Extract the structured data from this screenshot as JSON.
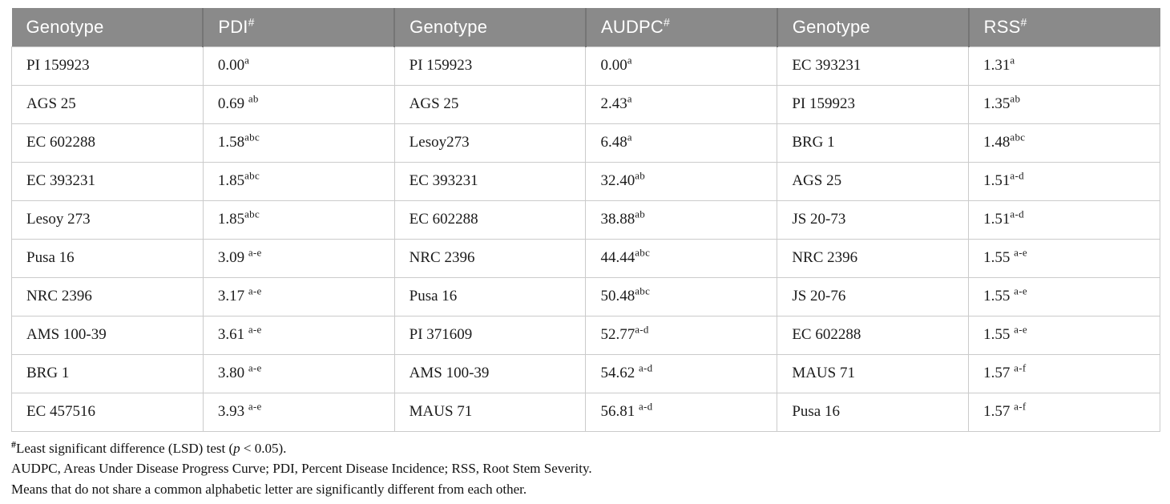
{
  "colors": {
    "header_bg": "#8a8a8a",
    "header_divider": "#757575",
    "header_text": "#ffffff",
    "body_border": "#cbcbcb",
    "body_text": "#1b1b1b",
    "page_bg": "#ffffff"
  },
  "table": {
    "columns": [
      {
        "label": "Genotype",
        "sup": ""
      },
      {
        "label": "PDI",
        "sup": "#"
      },
      {
        "label": "Genotype",
        "sup": ""
      },
      {
        "label": "AUDPC",
        "sup": "#"
      },
      {
        "label": "Genotype",
        "sup": ""
      },
      {
        "label": "RSS",
        "sup": "#"
      }
    ],
    "rows": [
      [
        {
          "t": "PI 159923"
        },
        {
          "t": "0.00",
          "s": "a"
        },
        {
          "t": "PI 159923"
        },
        {
          "t": "0.00",
          "s": "a"
        },
        {
          "t": "EC 393231"
        },
        {
          "t": "1.31",
          "s": "a"
        }
      ],
      [
        {
          "t": "AGS 25"
        },
        {
          "t": "0.69",
          "s": "ab",
          "sp": true
        },
        {
          "t": "AGS 25"
        },
        {
          "t": "2.43",
          "s": "a"
        },
        {
          "t": "PI 159923"
        },
        {
          "t": "1.35",
          "s": "ab"
        }
      ],
      [
        {
          "t": "EC 602288"
        },
        {
          "t": "1.58",
          "s": "abc"
        },
        {
          "t": "Lesoy273"
        },
        {
          "t": "6.48",
          "s": "a"
        },
        {
          "t": "BRG 1"
        },
        {
          "t": "1.48",
          "s": "abc"
        }
      ],
      [
        {
          "t": "EC 393231"
        },
        {
          "t": "1.85",
          "s": "abc"
        },
        {
          "t": "EC 393231"
        },
        {
          "t": "32.40",
          "s": "ab"
        },
        {
          "t": "AGS 25"
        },
        {
          "t": "1.51",
          "s": "a-d"
        }
      ],
      [
        {
          "t": "Lesoy 273"
        },
        {
          "t": "1.85",
          "s": "abc"
        },
        {
          "t": "EC 602288"
        },
        {
          "t": "38.88",
          "s": "ab"
        },
        {
          "t": "JS 20-73"
        },
        {
          "t": "1.51",
          "s": "a-d"
        }
      ],
      [
        {
          "t": "Pusa 16"
        },
        {
          "t": "3.09",
          "s": "a-e",
          "sp": true
        },
        {
          "t": "NRC 2396"
        },
        {
          "t": "44.44",
          "s": "abc"
        },
        {
          "t": "NRC 2396"
        },
        {
          "t": "1.55",
          "s": "a-e",
          "sp": true
        }
      ],
      [
        {
          "t": "NRC 2396"
        },
        {
          "t": "3.17",
          "s": "a-e",
          "sp": true
        },
        {
          "t": "Pusa 16"
        },
        {
          "t": "50.48",
          "s": "abc"
        },
        {
          "t": "JS 20-76"
        },
        {
          "t": "1.55",
          "s": "a-e",
          "sp": true
        }
      ],
      [
        {
          "t": "AMS 100-39"
        },
        {
          "t": "3.61",
          "s": "a-e",
          "sp": true
        },
        {
          "t": "PI 371609"
        },
        {
          "t": "52.77",
          "s": "a-d"
        },
        {
          "t": "EC 602288"
        },
        {
          "t": "1.55",
          "s": "a-e",
          "sp": true
        }
      ],
      [
        {
          "t": "BRG 1"
        },
        {
          "t": "3.80",
          "s": "a-e",
          "sp": true
        },
        {
          "t": "AMS 100-39"
        },
        {
          "t": "54.62",
          "s": "a-d",
          "sp": true
        },
        {
          "t": "MAUS 71"
        },
        {
          "t": "1.57",
          "s": "a-f",
          "sp": true
        }
      ],
      [
        {
          "t": "EC 457516"
        },
        {
          "t": "3.93",
          "s": "a-e",
          "sp": true
        },
        {
          "t": "MAUS 71"
        },
        {
          "t": "56.81",
          "s": "a-d",
          "sp": true
        },
        {
          "t": "Pusa 16"
        },
        {
          "t": "1.57",
          "s": "a-f",
          "sp": true
        }
      ]
    ]
  },
  "footnotes": {
    "lsd_marker": "#",
    "lsd_before": "Least significant difference (LSD) test (",
    "lsd_italic": "p",
    "lsd_after": " < 0.05).",
    "abbreviations": "AUDPC, Areas Under Disease Progress Curve; PDI, Percent Disease Incidence; RSS, Root Stem Severity.",
    "means_note": "Means that do not share a common alphabetic letter are significantly different from each other."
  }
}
